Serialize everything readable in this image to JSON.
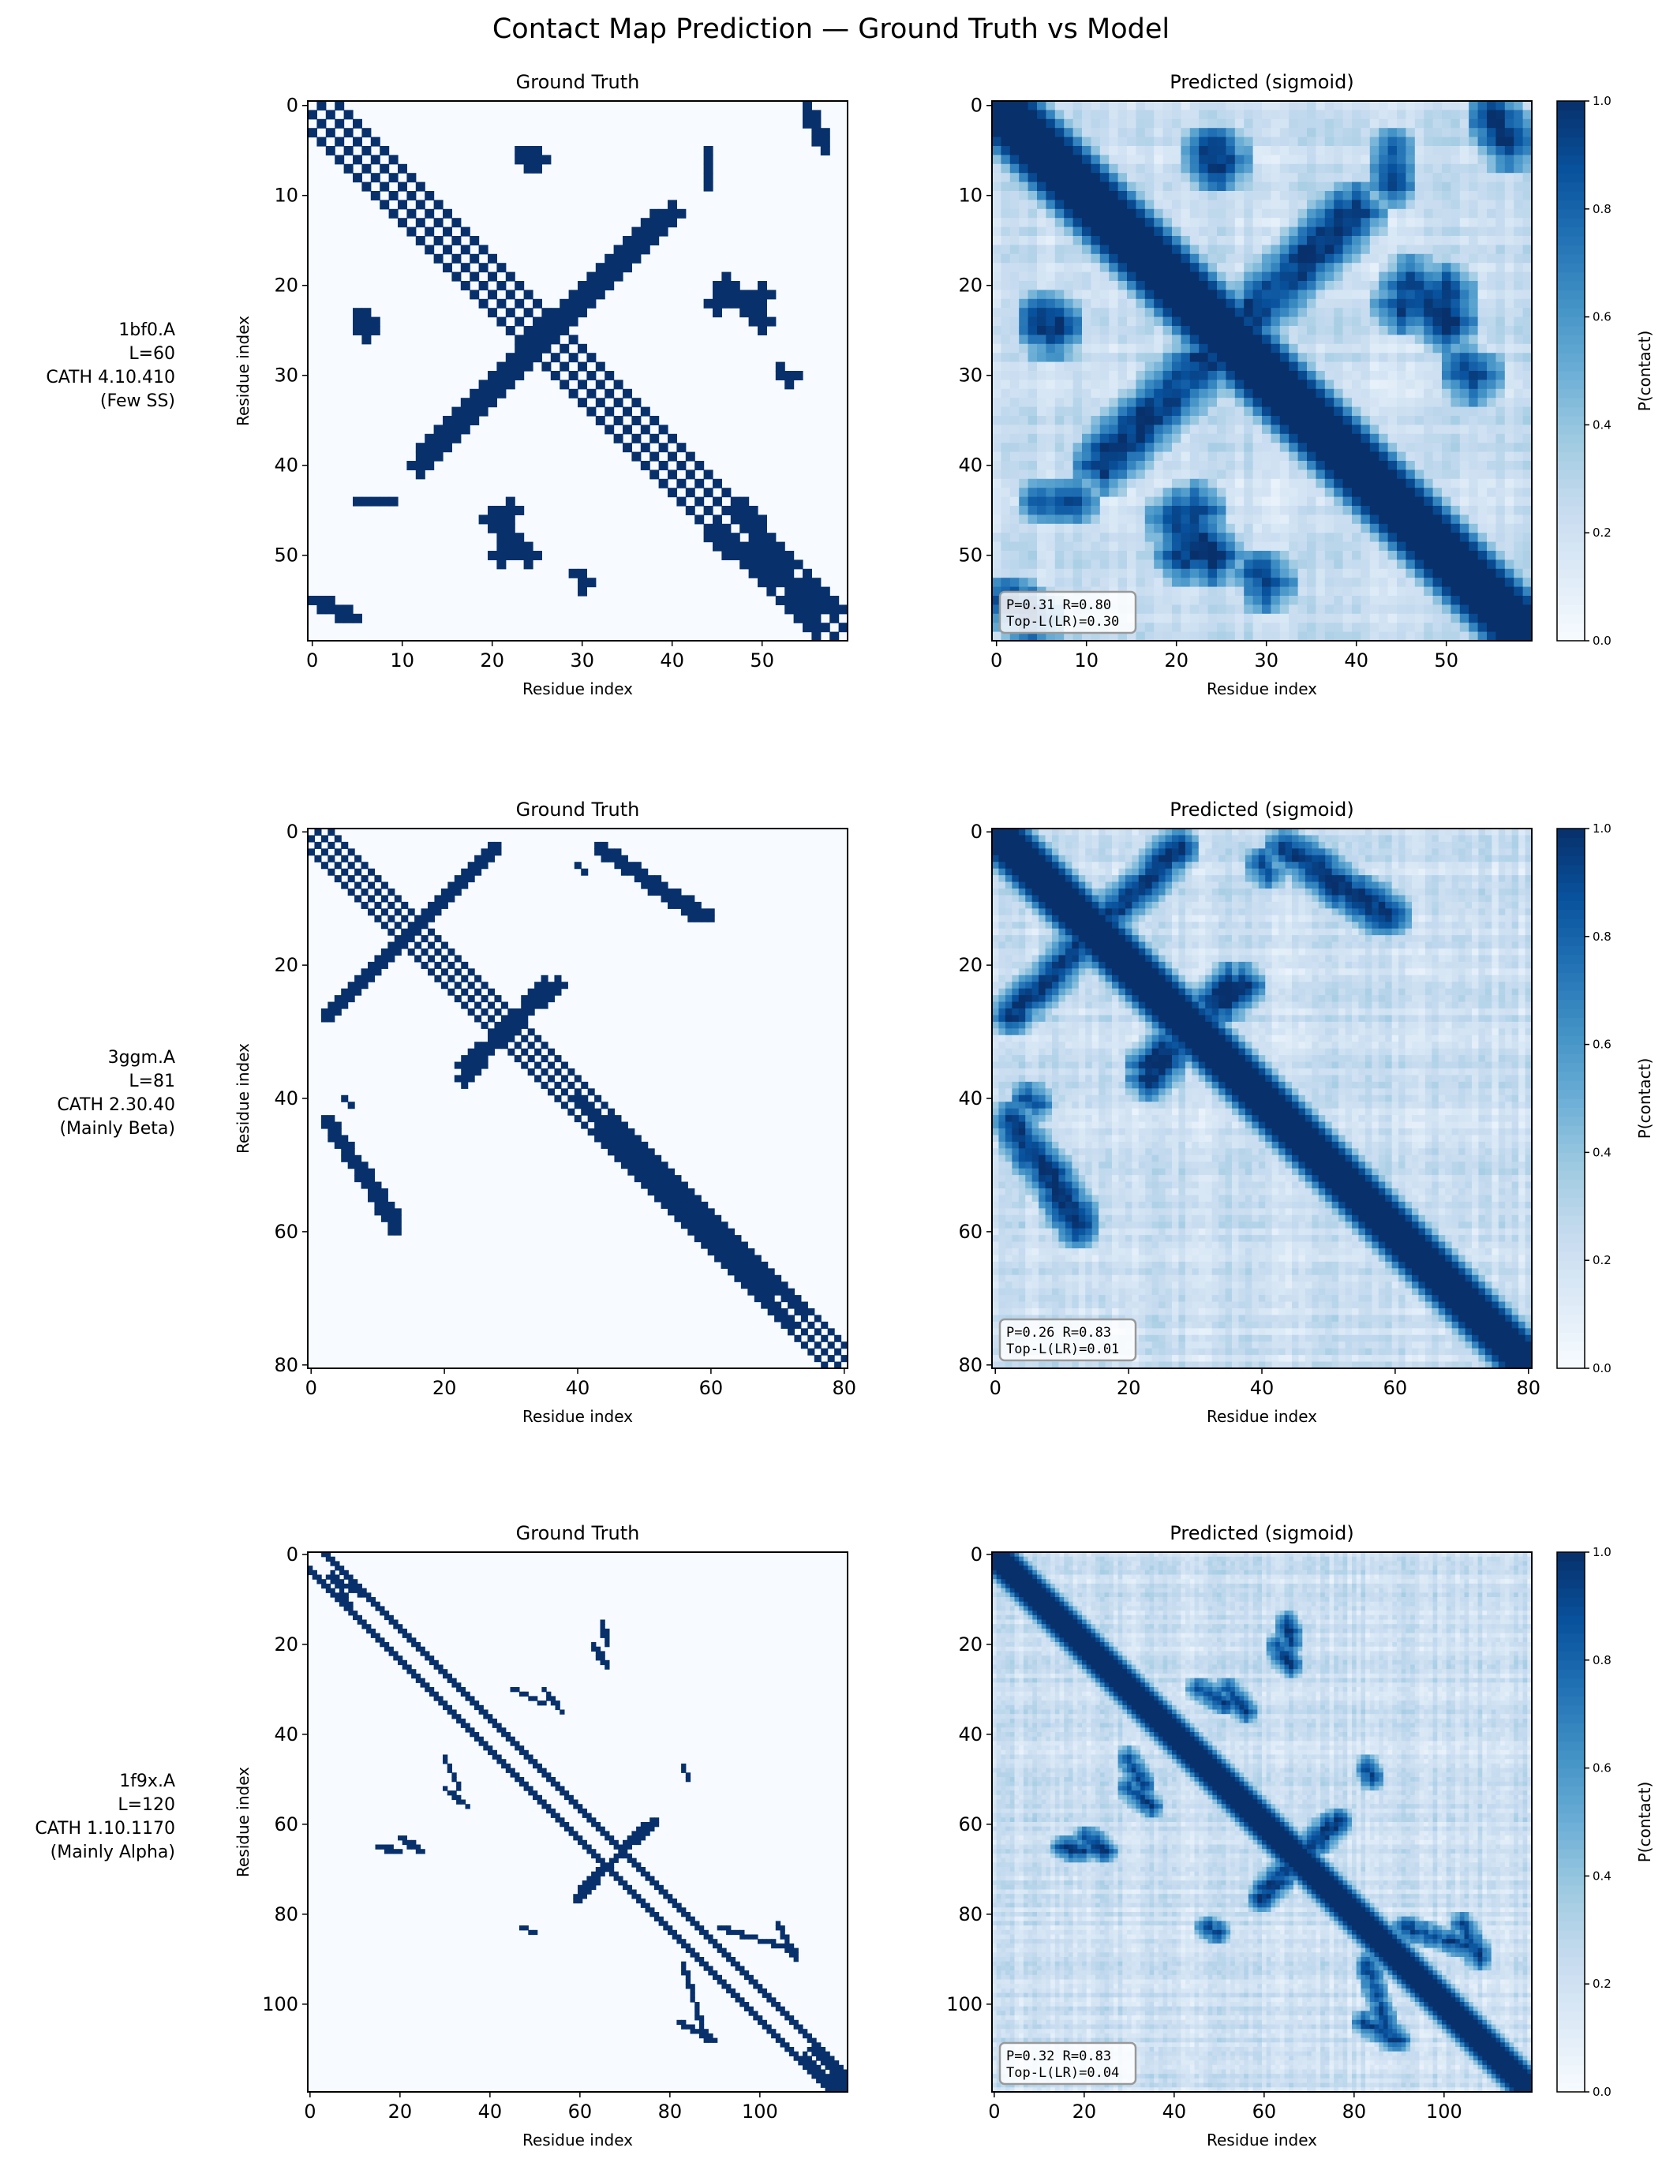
{
  "title": "Contact Map Prediction — Ground Truth vs Model",
  "colormap": [
    "#f7fbff",
    "#deebf7",
    "#c6dbef",
    "#9ecae1",
    "#6baed6",
    "#4292c6",
    "#2171b5",
    "#08519c",
    "#08306b"
  ],
  "colorbar": {
    "label": "P(contact)",
    "ticks": [
      "0.0",
      "0.2",
      "0.4",
      "0.6",
      "0.8",
      "1.0"
    ],
    "range": [
      0,
      1
    ]
  },
  "chart_data": [
    {
      "type": "heatmap",
      "protein": "1bf0.A",
      "length_label": "L=60",
      "cath": "CATH 4.10.410",
      "class": "(Few SS)",
      "L": 60,
      "gt_title": "Ground Truth",
      "pred_title": "Predicted (sigmoid)",
      "xlabel": "Residue index",
      "ylabel": "Residue index",
      "ticks": [
        0,
        10,
        20,
        30,
        40,
        50
      ],
      "metrics": {
        "line1": "P=0.31  R=0.80",
        "line2": "Top-L(LR)=0.30"
      },
      "gt_diag_offsets": [
        1,
        3
      ],
      "gt_segments": [
        {
          "from": [
            12,
            40
          ],
          "to": [
            38,
            13
          ],
          "width": 2.6
        },
        {
          "from": [
            24,
            5
          ],
          "to": [
            26,
            6
          ],
          "width": 1.5
        },
        {
          "from": [
            44,
            5
          ],
          "to": [
            44,
            9
          ],
          "width": 1
        },
        {
          "from": [
            45,
            22
          ],
          "to": [
            50,
            21
          ],
          "width": 2
        },
        {
          "from": [
            20,
            46
          ],
          "to": [
            24,
            50
          ],
          "width": 2
        },
        {
          "from": [
            0,
            55
          ],
          "to": [
            5,
            57
          ],
          "width": 1.5
        },
        {
          "from": [
            5,
            23
          ],
          "to": [
            7,
            25
          ],
          "width": 1.5
        },
        {
          "from": [
            29,
            52
          ],
          "to": [
            31,
            53
          ],
          "width": 1.5
        },
        {
          "from": [
            45,
            48
          ],
          "to": [
            58,
            56
          ],
          "width": 2.5
        },
        {
          "from": [
            53,
            30
          ],
          "to": [
            54,
            30
          ],
          "width": 1.2
        }
      ]
    },
    {
      "type": "heatmap",
      "protein": "3ggm.A",
      "length_label": "L=81",
      "cath": "CATH 2.30.40",
      "class": "(Mainly Beta)",
      "L": 81,
      "gt_title": "Ground Truth",
      "pred_title": "Predicted (sigmoid)",
      "xlabel": "Residue index",
      "ylabel": "Residue index",
      "ticks": [
        0,
        20,
        40,
        60,
        80
      ],
      "metrics": {
        "line1": "P=0.26  R=0.83",
        "line2": "Top-L(LR)=0.01"
      },
      "gt_diag_offsets": [
        1,
        3
      ],
      "gt_segments": [
        {
          "from": [
            3,
            27
          ],
          "to": [
            28,
            2
          ],
          "width": 1.8
        },
        {
          "from": [
            2,
            43
          ],
          "to": [
            13,
            60
          ],
          "width": 1.8
        },
        {
          "from": [
            44,
            3
          ],
          "to": [
            58,
            13
          ],
          "width": 1.8
        },
        {
          "from": [
            23,
            37
          ],
          "to": [
            35,
            23
          ],
          "width": 2
        },
        {
          "from": [
            40,
            40
          ],
          "to": [
            74,
            72
          ],
          "width": 2.5
        },
        {
          "from": [
            5,
            40
          ],
          "to": [
            6,
            41
          ],
          "width": 1
        }
      ]
    },
    {
      "type": "heatmap",
      "protein": "1f9x.A",
      "length_label": "L=120",
      "cath": "CATH 1.10.1170",
      "class": "(Mainly Alpha)",
      "L": 120,
      "gt_title": "Ground Truth",
      "pred_title": "Predicted (sigmoid)",
      "xlabel": "Residue index",
      "ylabel": "Residue index",
      "ticks": [
        0,
        20,
        40,
        60,
        80,
        100
      ],
      "metrics": {
        "line1": "P=0.32  R=0.83",
        "line2": "Top-L(LR)=0.04"
      },
      "gt_diag_offsets": [
        3,
        4
      ],
      "gt_segments": [
        {
          "from": [
            60,
            75
          ],
          "to": [
            77,
            59
          ],
          "width": 1.8
        },
        {
          "from": [
            5,
            4
          ],
          "to": [
            10,
            14
          ],
          "width": 1.5
        },
        {
          "from": [
            63,
            20
          ],
          "to": [
            66,
            25
          ],
          "width": 1.5
        },
        {
          "from": [
            15,
            65
          ],
          "to": [
            20,
            66
          ],
          "width": 1.3
        },
        {
          "from": [
            30,
            45
          ],
          "to": [
            33,
            52
          ],
          "width": 1
        },
        {
          "from": [
            47,
            83
          ],
          "to": [
            50,
            84
          ],
          "width": 1
        },
        {
          "from": [
            83,
            91
          ],
          "to": [
            88,
            108
          ],
          "width": 1.2
        },
        {
          "from": [
            110,
            112
          ],
          "to": [
            118,
            119
          ],
          "width": 2
        },
        {
          "from": [
            104,
            82
          ],
          "to": [
            108,
            90
          ],
          "width": 1.2
        },
        {
          "from": [
            52,
            30
          ],
          "to": [
            56,
            35
          ],
          "width": 1
        }
      ]
    }
  ]
}
